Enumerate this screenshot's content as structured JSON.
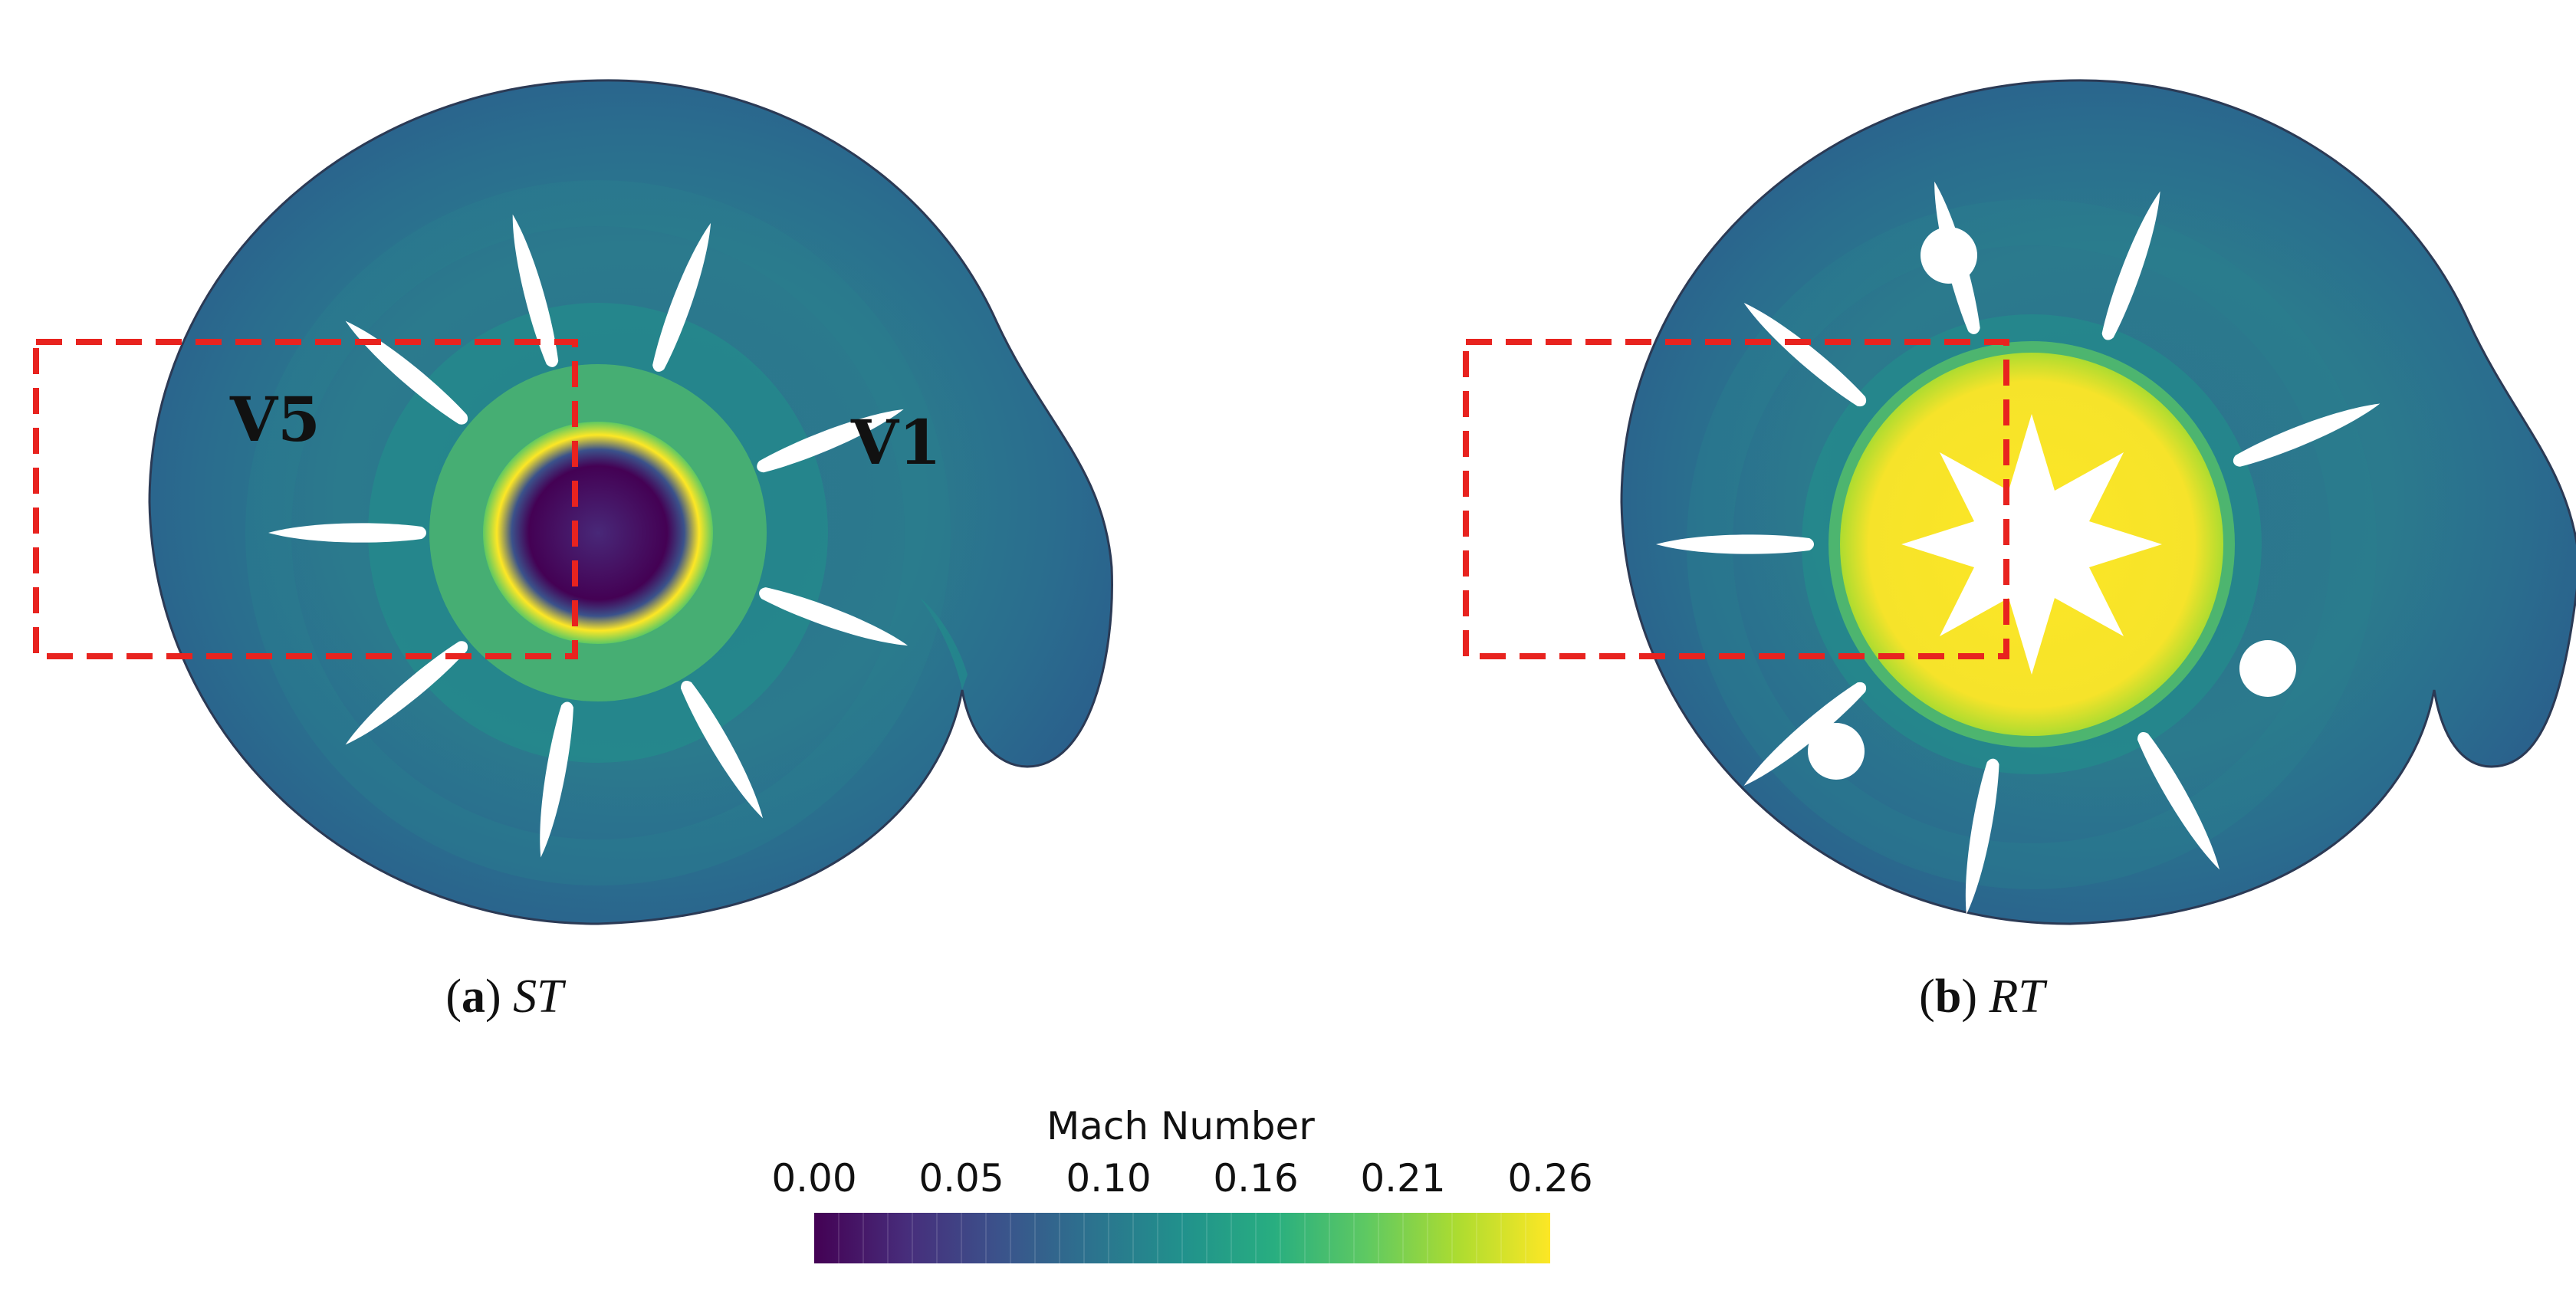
{
  "panels": [
    {
      "id": "a",
      "letter": "a",
      "label": "ST",
      "vane_labels": [
        "V5",
        "V1"
      ]
    },
    {
      "id": "b",
      "letter": "b",
      "label": "RT",
      "vane_labels": []
    }
  ],
  "colorbar": {
    "title": "Mach Number",
    "ticks": [
      "0.00",
      "0.05",
      "0.10",
      "0.16",
      "0.21",
      "0.26"
    ],
    "range": [
      0.0,
      0.26
    ],
    "colormap": "viridis",
    "colors": [
      "#440154",
      "#472d7b",
      "#3b528b",
      "#2c728e",
      "#21918c",
      "#28ae80",
      "#5ec962",
      "#addc30",
      "#fde725"
    ]
  },
  "highlight_color": "#e8231f"
}
